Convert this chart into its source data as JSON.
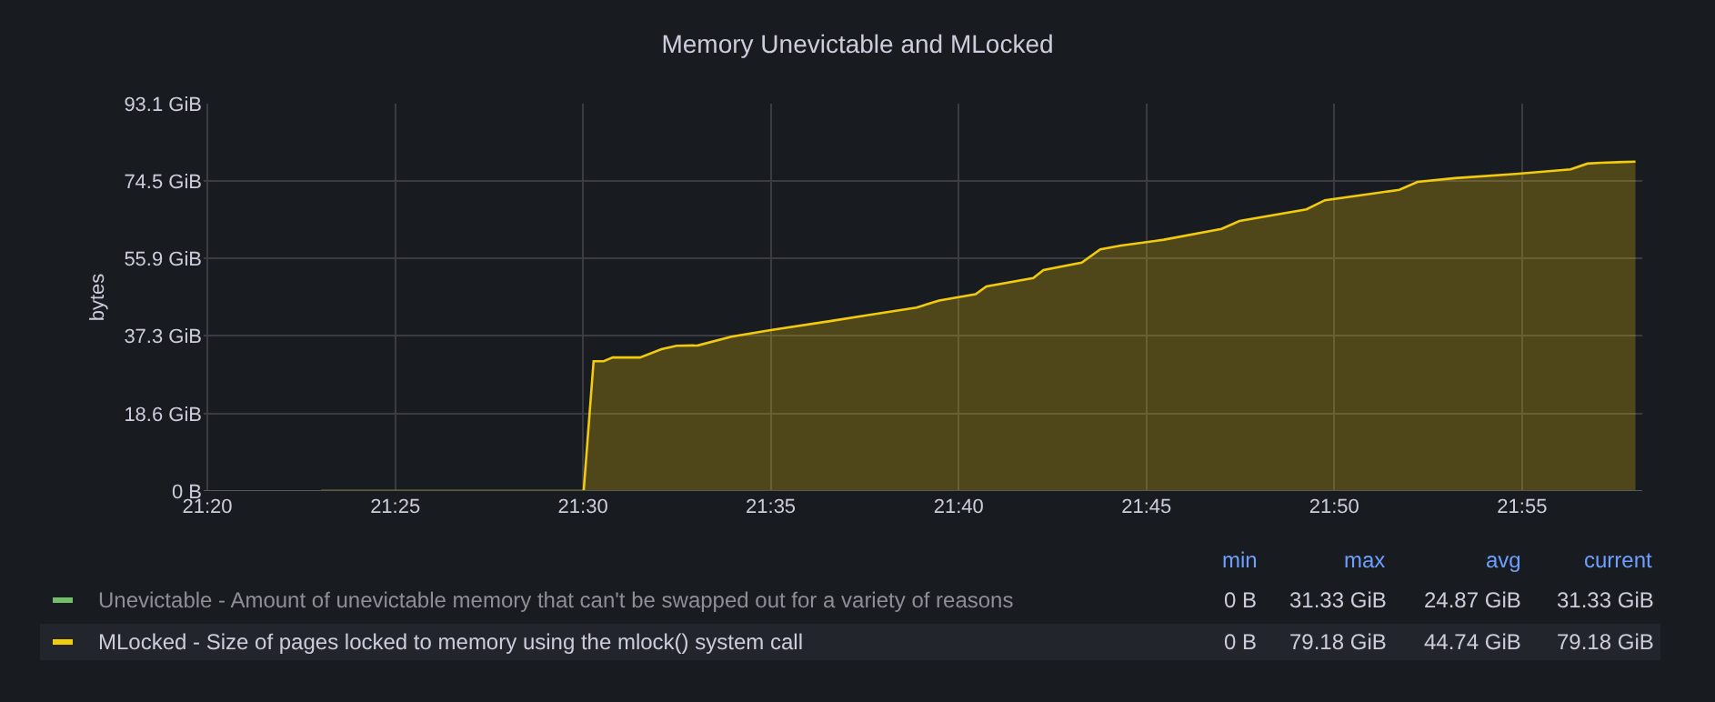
{
  "chart_data": {
    "type": "area",
    "title": "Memory Unevictable and MLocked",
    "ylabel": "bytes",
    "x": [
      21.3838,
      21.5003,
      21.5047,
      21.5092,
      21.5132,
      21.5253,
      21.5348,
      21.5415,
      21.551,
      21.5658,
      21.5833,
      21.6103,
      21.6265,
      21.648,
      21.658,
      21.6742,
      21.679,
      21.6998,
      21.7043,
      21.7213,
      21.7295,
      21.7388,
      21.7577,
      21.7833,
      21.7913,
      21.821,
      21.8292,
      21.8493,
      21.8622,
      21.8703,
      21.887,
      21.914,
      21.9382,
      21.9457,
      21.9517,
      21.967
    ],
    "series": [
      {
        "name": "Unevictable - Amount of unevictable memory that can't be swapped out for a variety of reasons",
        "color": "#73bf69",
        "values": [
          null,
          null,
          null,
          null,
          null,
          null,
          null,
          null,
          null,
          null,
          null,
          null,
          null,
          null,
          null,
          null,
          null,
          null,
          null,
          null,
          null,
          null,
          null,
          null,
          null,
          null,
          null,
          null,
          null,
          null,
          null,
          null,
          null,
          null,
          null,
          null
        ]
      },
      {
        "name": "MLocked - Size of pages locked to memory using the mlock() system call",
        "color": "#f2cc0c",
        "values": [
          0,
          0,
          31.2,
          31.2,
          32.1,
          32.1,
          34.1,
          34.9,
          35.0,
          37.1,
          38.7,
          40.9,
          42.3,
          44.1,
          45.8,
          47.3,
          49.2,
          51.2,
          53.1,
          54.9,
          58.1,
          59.0,
          60.4,
          63.0,
          64.9,
          67.7,
          69.9,
          71.4,
          72.4,
          74.3,
          75.2,
          76.2,
          77.3,
          78.7,
          78.9,
          79.18
        ]
      }
    ],
    "xlim": [
      21.3317,
      21.97
    ],
    "xticks": [
      {
        "value": 21.3333,
        "label": "21:20"
      },
      {
        "value": 21.4167,
        "label": "21:25"
      },
      {
        "value": 21.5,
        "label": "21:30"
      },
      {
        "value": 21.5833,
        "label": "21:35"
      },
      {
        "value": 21.6667,
        "label": "21:40"
      },
      {
        "value": 21.75,
        "label": "21:45"
      },
      {
        "value": 21.8333,
        "label": "21:50"
      },
      {
        "value": 21.9167,
        "label": "21:55"
      }
    ],
    "ylim": [
      0,
      93.1
    ],
    "yticks": [
      {
        "value": 0,
        "label": "0 B"
      },
      {
        "value": 18.6,
        "label": "18.6 GiB"
      },
      {
        "value": 37.3,
        "label": "37.3 GiB"
      },
      {
        "value": 55.9,
        "label": "55.9 GiB"
      },
      {
        "value": 74.5,
        "label": "74.5 GiB"
      },
      {
        "value": 93.1,
        "label": "93.1 GiB"
      }
    ],
    "grid": true,
    "legend": "bottom",
    "annotations": [
      "min",
      "max",
      "avg",
      "current",
      "0 B",
      "31.33 GiB",
      "24.87 GiB",
      "31.33 GiB",
      "0 B",
      "79.18 GiB",
      "44.74 GiB",
      "79.18 GiB"
    ]
  }
}
